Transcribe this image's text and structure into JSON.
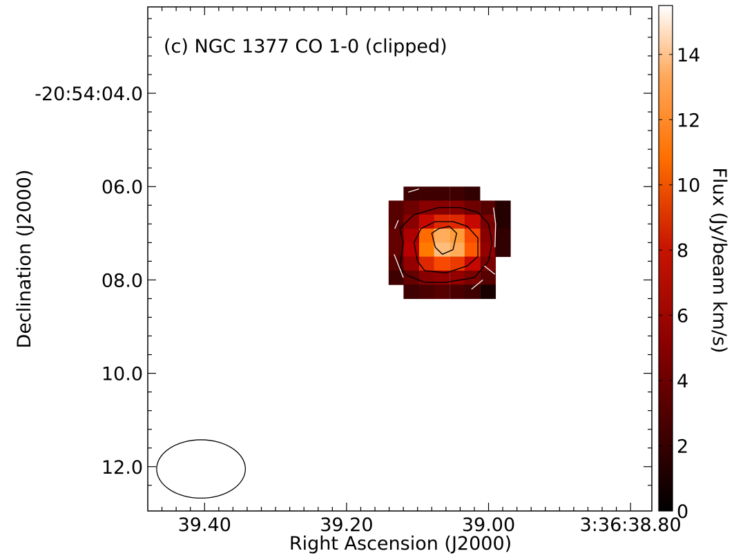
{
  "chart_data": {
    "type": "heatmap",
    "title": "(c) NGC 1377 CO 1-0 (clipped)",
    "xlabel": "Right Ascension (J2000)",
    "ylabel": "Declination (J2000)",
    "colorbar_label": "Flux (Jy/beam km/s)",
    "colormap": "gist_heat",
    "colorbar_range": [
      0,
      15.5
    ],
    "colorbar_ticks": [
      "0",
      "2",
      "4",
      "6",
      "8",
      "10",
      "12",
      "14"
    ],
    "x_ticks": [
      "39.40",
      "39.20",
      "39.00",
      "3:36:38.80"
    ],
    "y_ticks": [
      "-20:54:04.0",
      "06.0",
      "08.0",
      "10.0",
      "12.0"
    ],
    "x_range_seconds": [
      39.48,
      38.77
    ],
    "y_range_arcsec": [
      2.15,
      12.95
    ],
    "grid": false,
    "pixel_size": {
      "ra_seconds": 0.0215,
      "dec_arcsec": 0.3
    },
    "pixels": {
      "ra_seconds": [
        39.13,
        39.109,
        39.087,
        39.066,
        39.044,
        39.023,
        39.001,
        38.98
      ],
      "dec_arcsec": [
        6.15,
        6.45,
        6.75,
        7.05,
        7.35,
        7.65,
        7.95,
        8.25
      ],
      "flux": [
        [
          null,
          2.5,
          2.5,
          2.5,
          2.5,
          2.0,
          null,
          null
        ],
        [
          3.5,
          4.5,
          5.5,
          5.5,
          5.5,
          4.5,
          3.5,
          1.5
        ],
        [
          3.5,
          5.5,
          8.0,
          9.0,
          9.0,
          8.0,
          5.0,
          1.5
        ],
        [
          4.0,
          7.0,
          11.0,
          13.0,
          12.5,
          10.0,
          5.5,
          2.0
        ],
        [
          4.0,
          7.5,
          11.5,
          13.5,
          13.0,
          10.5,
          6.0,
          2.0
        ],
        [
          3.5,
          6.0,
          9.0,
          10.0,
          9.5,
          8.0,
          5.0,
          null
        ],
        [
          2.5,
          4.0,
          5.5,
          6.0,
          6.0,
          5.0,
          3.5,
          null
        ],
        [
          null,
          2.5,
          3.0,
          3.5,
          3.0,
          2.5,
          1.0,
          null
        ]
      ]
    },
    "contours": [
      {
        "level": "outer",
        "points": [
          [
            39.125,
            7.7
          ],
          [
            39.12,
            7.2
          ],
          [
            39.125,
            6.9
          ],
          [
            39.105,
            6.6
          ],
          [
            39.07,
            6.45
          ],
          [
            39.04,
            6.45
          ],
          [
            39.015,
            6.55
          ],
          [
            39.0,
            6.8
          ],
          [
            38.995,
            7.2
          ],
          [
            39.0,
            7.6
          ],
          [
            39.02,
            7.95
          ],
          [
            39.06,
            8.05
          ],
          [
            39.09,
            8.05
          ],
          [
            39.115,
            7.9
          ]
        ]
      },
      {
        "level": "middle",
        "points": [
          [
            39.1,
            7.6
          ],
          [
            39.105,
            7.2
          ],
          [
            39.095,
            6.9
          ],
          [
            39.075,
            6.75
          ],
          [
            39.05,
            6.75
          ],
          [
            39.03,
            6.85
          ],
          [
            39.015,
            7.1
          ],
          [
            39.015,
            7.5
          ],
          [
            39.03,
            7.7
          ],
          [
            39.06,
            7.85
          ],
          [
            39.09,
            7.8
          ]
        ]
      },
      {
        "level": "inner",
        "points": [
          [
            39.08,
            7.0
          ],
          [
            39.075,
            7.3
          ],
          [
            39.065,
            7.45
          ],
          [
            39.05,
            7.35
          ],
          [
            39.045,
            7.0
          ],
          [
            39.055,
            6.85
          ],
          [
            39.07,
            6.9
          ]
        ]
      }
    ],
    "noise_contours": [
      [
        [
          39.113,
          6.12
        ],
        [
          39.098,
          6.05
        ]
      ],
      [
        [
          39.132,
          6.9
        ],
        [
          39.127,
          6.72
        ]
      ],
      [
        [
          39.133,
          7.45
        ],
        [
          39.12,
          7.95
        ]
      ],
      [
        [
          38.993,
          6.45
        ],
        [
          38.99,
          6.8
        ],
        [
          38.991,
          7.3
        ]
      ],
      [
        [
          39.006,
          7.7
        ],
        [
          38.991,
          7.88
        ]
      ],
      [
        [
          39.024,
          8.2
        ],
        [
          39.008,
          8.0
        ]
      ]
    ],
    "beam": {
      "center": [
        39.405,
        12.05
      ],
      "width_seconds": 0.125,
      "height_arcsec": 1.25
    }
  }
}
